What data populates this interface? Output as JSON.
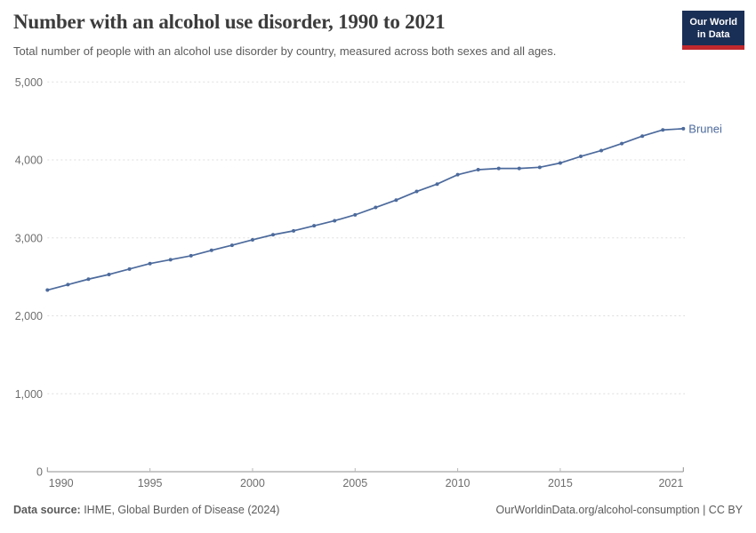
{
  "header": {
    "title": "Number with an alcohol use disorder, 1990 to 2021",
    "subtitle": "Total number of people with an alcohol use disorder by country, measured across both sexes and all ages."
  },
  "logo": {
    "line1": "Our World",
    "line2": "in Data",
    "bg_color": "#1a2f55",
    "accent_color": "#c0282d"
  },
  "chart_data": {
    "type": "line",
    "title": "Number with an alcohol use disorder, 1990 to 2021",
    "x": [
      1990,
      1991,
      1992,
      1993,
      1994,
      1995,
      1996,
      1997,
      1998,
      1999,
      2000,
      2001,
      2002,
      2003,
      2004,
      2005,
      2006,
      2007,
      2008,
      2009,
      2010,
      2011,
      2012,
      2013,
      2014,
      2015,
      2016,
      2017,
      2018,
      2019,
      2020,
      2021
    ],
    "series": [
      {
        "name": "Brunei",
        "color": "#4c6a9c",
        "values": [
          2330,
          2400,
          2470,
          2530,
          2600,
          2670,
          2720,
          2770,
          2840,
          2905,
          2975,
          3040,
          3090,
          3155,
          3220,
          3295,
          3390,
          3485,
          3595,
          3690,
          3810,
          3875,
          3890,
          3890,
          3905,
          3960,
          4045,
          4120,
          4210,
          4305,
          4385,
          4400
        ]
      }
    ],
    "xlabel": "",
    "ylabel": "",
    "ylim": [
      0,
      5000
    ],
    "xlim": [
      1990,
      2021
    ],
    "yticks": {
      "values": [
        0,
        1000,
        2000,
        3000,
        4000,
        5000
      ],
      "labels": [
        "0",
        "1,000",
        "2,000",
        "3,000",
        "4,000",
        "5,000"
      ]
    },
    "xticks": {
      "values": [
        1990,
        1995,
        2000,
        2005,
        2010,
        2015,
        2021
      ],
      "labels": [
        "1990",
        "1995",
        "2000",
        "2005",
        "2010",
        "2015",
        "2021"
      ]
    },
    "grid": "horizontal dashed",
    "legend_position": "end-of-line label"
  },
  "footer": {
    "source_prefix": "Data source:",
    "source_text": " IHME, Global Burden of Disease (2024)",
    "link_text": "OurWorldinData.org/alcohol-consumption | CC BY"
  },
  "colors": {
    "line": "#4c6a9c",
    "grid": "#dedede",
    "axis": "#8f8f8f",
    "minor_tick": "#b8b8b8",
    "tick_label": "#6e6e6e",
    "text": "#5b5b5b",
    "title": "#3c3c3c"
  }
}
